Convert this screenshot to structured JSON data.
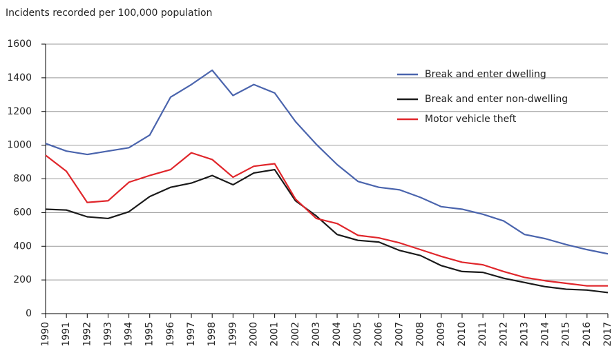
{
  "chart_data": {
    "type": "line",
    "y_label": "Incidents recorded per 100,000 population",
    "categories": [
      "1990",
      "1991",
      "1992",
      "1993",
      "1994",
      "1995",
      "1996",
      "1997",
      "1998",
      "1999",
      "2000",
      "2001",
      "2002",
      "2003",
      "2004",
      "2005",
      "2006",
      "2007",
      "2008",
      "2009",
      "2010",
      "2011",
      "2012",
      "2013",
      "2014",
      "2015",
      "2016",
      "2017"
    ],
    "series": [
      {
        "name": "Break and enter dwelling",
        "color": "#4a64ad",
        "values": [
          1010,
          965,
          945,
          965,
          985,
          1060,
          1285,
          1360,
          1445,
          1295,
          1360,
          1310,
          1140,
          1005,
          885,
          785,
          750,
          735,
          690,
          635,
          620,
          590,
          550,
          470,
          445,
          410,
          380,
          355
        ]
      },
      {
        "name": "Break and enter non-dwelling",
        "color": "#1a1a1a",
        "values": [
          620,
          615,
          575,
          565,
          605,
          695,
          750,
          775,
          820,
          765,
          835,
          855,
          670,
          580,
          470,
          435,
          425,
          375,
          345,
          285,
          250,
          245,
          210,
          185,
          160,
          145,
          140,
          125
        ]
      },
      {
        "name": "Motor vehicle theft",
        "color": "#e0262b",
        "values": [
          940,
          845,
          660,
          670,
          780,
          820,
          855,
          955,
          915,
          810,
          875,
          890,
          680,
          565,
          535,
          465,
          450,
          420,
          380,
          340,
          305,
          290,
          250,
          215,
          195,
          180,
          165,
          165
        ]
      }
    ],
    "ylim": [
      0,
      1600
    ],
    "yticks": [
      0,
      200,
      400,
      600,
      800,
      1000,
      1200,
      1400,
      1600
    ],
    "grid": true,
    "legend": "upper right"
  }
}
